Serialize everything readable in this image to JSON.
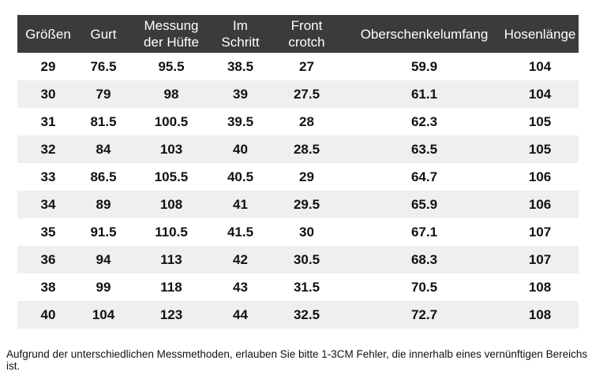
{
  "colors": {
    "header_bg": "#3b3b3b",
    "header_text": "#ffffff",
    "stripe_bg": "#efefef",
    "body_text": "#111111"
  },
  "table": {
    "headers": [
      "Größen",
      "Gurt",
      "Messung\nder Hüfte",
      "Im\nSchritt",
      "Front\ncrotch",
      "Oberschenkelumfang",
      "Hosenlänge"
    ],
    "rows": [
      [
        "29",
        "76.5",
        "95.5",
        "38.5",
        "27",
        "59.9",
        "104"
      ],
      [
        "30",
        "79",
        "98",
        "39",
        "27.5",
        "61.1",
        "104"
      ],
      [
        "31",
        "81.5",
        "100.5",
        "39.5",
        "28",
        "62.3",
        "105"
      ],
      [
        "32",
        "84",
        "103",
        "40",
        "28.5",
        "63.5",
        "105"
      ],
      [
        "33",
        "86.5",
        "105.5",
        "40.5",
        "29",
        "64.7",
        "106"
      ],
      [
        "34",
        "89",
        "108",
        "41",
        "29.5",
        "65.9",
        "106"
      ],
      [
        "35",
        "91.5",
        "110.5",
        "41.5",
        "30",
        "67.1",
        "107"
      ],
      [
        "36",
        "94",
        "113",
        "42",
        "30.5",
        "68.3",
        "107"
      ],
      [
        "38",
        "99",
        "118",
        "43",
        "31.5",
        "70.5",
        "108"
      ],
      [
        "40",
        "104",
        "123",
        "44",
        "32.5",
        "72.7",
        "108"
      ]
    ]
  },
  "footer": {
    "note": "Aufgrund der unterschiedlichen Messmethoden, erlauben Sie bitte 1-3CM Fehler, die innerhalb eines vernünftigen Bereichs ist."
  },
  "chart_data": {
    "type": "table",
    "title": "",
    "columns": [
      "Größen",
      "Gurt",
      "Messung der Hüfte",
      "Im Schritt",
      "Front crotch",
      "Oberschenkelumfang",
      "Hosenlänge"
    ],
    "rows": [
      [
        29,
        76.5,
        95.5,
        38.5,
        27,
        59.9,
        104
      ],
      [
        30,
        79,
        98,
        39,
        27.5,
        61.1,
        104
      ],
      [
        31,
        81.5,
        100.5,
        39.5,
        28,
        62.3,
        105
      ],
      [
        32,
        84,
        103,
        40,
        28.5,
        63.5,
        105
      ],
      [
        33,
        86.5,
        105.5,
        40.5,
        29,
        64.7,
        106
      ],
      [
        34,
        89,
        108,
        41,
        29.5,
        65.9,
        106
      ],
      [
        35,
        91.5,
        110.5,
        41.5,
        30,
        67.1,
        107
      ],
      [
        36,
        94,
        113,
        42,
        30.5,
        68.3,
        107
      ],
      [
        38,
        99,
        118,
        43,
        31.5,
        70.5,
        108
      ],
      [
        40,
        104,
        123,
        44,
        32.5,
        72.7,
        108
      ]
    ],
    "layout_hints": {
      "zebra_striping": true,
      "header_style": "dark-background-white-text",
      "cell_alignment": "center"
    }
  }
}
